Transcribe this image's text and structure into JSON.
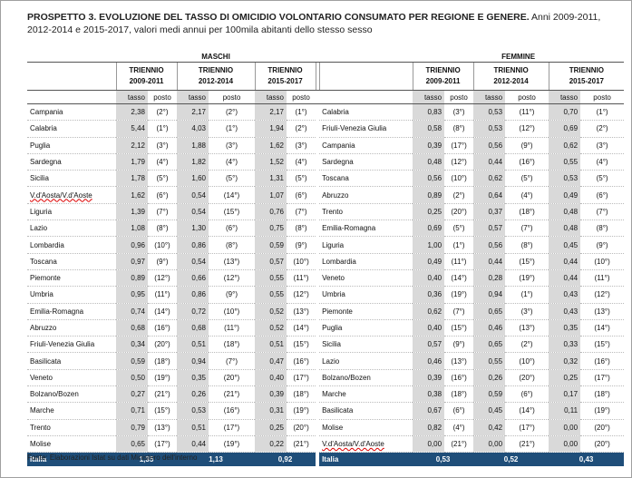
{
  "title_bold": "PROSPETTO 3. EVOLUZIONE DEL TASSO DI OMICIDIO VOLONTARIO CONSUMATO PER REGIONE E GENERE.",
  "title_rest": "Anni 2009-2011, 2012-2014 e 2015-2017, valori medi annui per 100mila abitanti dello stesso sesso",
  "headers": {
    "maschi": "MASCHI",
    "femmine": "FEMMINE",
    "triennio": "TRIENNIO",
    "years": [
      "2009-2011",
      "2012-2014",
      "2015-2017"
    ],
    "tasso": "tasso",
    "posto": "posto"
  },
  "table": {
    "maschi": [
      [
        "Campania",
        "2,38",
        "(2°)",
        "2,17",
        "(2°)",
        "2,17",
        "(1°)"
      ],
      [
        "Calabria",
        "5,44",
        "(1°)",
        "4,03",
        "(1°)",
        "1,94",
        "(2°)"
      ],
      [
        "Puglia",
        "2,12",
        "(3°)",
        "1,88",
        "(3°)",
        "1,62",
        "(3°)"
      ],
      [
        "Sardegna",
        "1,79",
        "(4°)",
        "1,82",
        "(4°)",
        "1,52",
        "(4°)"
      ],
      [
        "Sicilia",
        "1,78",
        "(5°)",
        "1,60",
        "(5°)",
        "1,31",
        "(5°)"
      ],
      [
        "V.d'Aosta/V.d'Aoste",
        "1,62",
        "(6°)",
        "0,54",
        "(14°)",
        "1,07",
        "(6°)"
      ],
      [
        "Liguria",
        "1,39",
        "(7°)",
        "0,54",
        "(15°)",
        "0,76",
        "(7°)"
      ],
      [
        "Lazio",
        "1,08",
        "(8°)",
        "1,30",
        "(6°)",
        "0,75",
        "(8°)"
      ],
      [
        "Lombardia",
        "0,96",
        "(10°)",
        "0,86",
        "(8°)",
        "0,59",
        "(9°)"
      ],
      [
        "Toscana",
        "0,97",
        "(9°)",
        "0,54",
        "(13°)",
        "0,57",
        "(10°)"
      ],
      [
        "Piemonte",
        "0,89",
        "(12°)",
        "0,66",
        "(12°)",
        "0,55",
        "(11°)"
      ],
      [
        "Umbria",
        "0,95",
        "(11°)",
        "0,86",
        "(9°)",
        "0,55",
        "(12°)"
      ],
      [
        "Emilia-Romagna",
        "0,74",
        "(14°)",
        "0,72",
        "(10°)",
        "0,52",
        "(13°)"
      ],
      [
        "Abruzzo",
        "0,68",
        "(16°)",
        "0,68",
        "(11°)",
        "0,52",
        "(14°)"
      ],
      [
        "Friuli-Venezia Giulia",
        "0,34",
        "(20°)",
        "0,51",
        "(18°)",
        "0,51",
        "(15°)"
      ],
      [
        "Basilicata",
        "0,59",
        "(18°)",
        "0,94",
        "(7°)",
        "0,47",
        "(16°)"
      ],
      [
        "Veneto",
        "0,50",
        "(19°)",
        "0,35",
        "(20°)",
        "0,40",
        "(17°)"
      ],
      [
        "Bolzano/Bozen",
        "0,27",
        "(21°)",
        "0,26",
        "(21°)",
        "0,39",
        "(18°)"
      ],
      [
        "Marche",
        "0,71",
        "(15°)",
        "0,53",
        "(16°)",
        "0,31",
        "(19°)"
      ],
      [
        "Trento",
        "0,79",
        "(13°)",
        "0,51",
        "(17°)",
        "0,25",
        "(20°)"
      ],
      [
        "Molise",
        "0,65",
        "(17°)",
        "0,44",
        "(19°)",
        "0,22",
        "(21°)"
      ]
    ],
    "femmine": [
      [
        "Calabria",
        "0,83",
        "(3°)",
        "0,53",
        "(11°)",
        "0,70",
        "(1°)"
      ],
      [
        "Friuli-Venezia Giulia",
        "0,58",
        "(8°)",
        "0,53",
        "(12°)",
        "0,69",
        "(2°)"
      ],
      [
        "Campania",
        "0,39",
        "(17°)",
        "0,56",
        "(9°)",
        "0,62",
        "(3°)"
      ],
      [
        "Sardegna",
        "0,48",
        "(12°)",
        "0,44",
        "(16°)",
        "0,55",
        "(4°)"
      ],
      [
        "Toscana",
        "0,56",
        "(10°)",
        "0,62",
        "(5°)",
        "0,53",
        "(5°)"
      ],
      [
        "Abruzzo",
        "0,89",
        "(2°)",
        "0,64",
        "(4°)",
        "0,49",
        "(6°)"
      ],
      [
        "Trento",
        "0,25",
        "(20°)",
        "0,37",
        "(18°)",
        "0,48",
        "(7°)"
      ],
      [
        "Emilia-Romagna",
        "0,69",
        "(5°)",
        "0,57",
        "(7°)",
        "0,48",
        "(8°)"
      ],
      [
        "Liguria",
        "1,00",
        "(1°)",
        "0,56",
        "(8°)",
        "0,45",
        "(9°)"
      ],
      [
        "Lombardia",
        "0,49",
        "(11°)",
        "0,44",
        "(15°)",
        "0,44",
        "(10°)"
      ],
      [
        "Veneto",
        "0,40",
        "(14°)",
        "0,28",
        "(19°)",
        "0,44",
        "(11°)"
      ],
      [
        "Umbria",
        "0,36",
        "(19°)",
        "0,94",
        "(1°)",
        "0,43",
        "(12°)"
      ],
      [
        "Piemonte",
        "0,62",
        "(7°)",
        "0,65",
        "(3°)",
        "0,43",
        "(13°)"
      ],
      [
        "Puglia",
        "0,40",
        "(15°)",
        "0,46",
        "(13°)",
        "0,35",
        "(14°)"
      ],
      [
        "Sicilia",
        "0,57",
        "(9°)",
        "0,65",
        "(2°)",
        "0,33",
        "(15°)"
      ],
      [
        "Lazio",
        "0,46",
        "(13°)",
        "0,55",
        "(10°)",
        "0,32",
        "(16°)"
      ],
      [
        "Bolzano/Bozen",
        "0,39",
        "(16°)",
        "0,26",
        "(20°)",
        "0,25",
        "(17°)"
      ],
      [
        "Marche",
        "0,38",
        "(18°)",
        "0,59",
        "(6°)",
        "0,17",
        "(18°)"
      ],
      [
        "Basilicata",
        "0,67",
        "(6°)",
        "0,45",
        "(14°)",
        "0,11",
        "(19°)"
      ],
      [
        "Molise",
        "0,82",
        "(4°)",
        "0,42",
        "(17°)",
        "0,00",
        "(20°)"
      ],
      [
        "V.d'Aosta/V.d'Aoste",
        "0,00",
        "(21°)",
        "0,00",
        "(21°)",
        "0,00",
        "(20°)"
      ]
    ],
    "italia_maschi": [
      "Italia",
      "1,35",
      "1,13",
      "0,92"
    ],
    "italia_femmine": [
      "Italia",
      "0,53",
      "0,52",
      "0,43"
    ]
  },
  "footer": "Fonte: Elaborazioni Istat su dati Ministero dell'interno"
}
